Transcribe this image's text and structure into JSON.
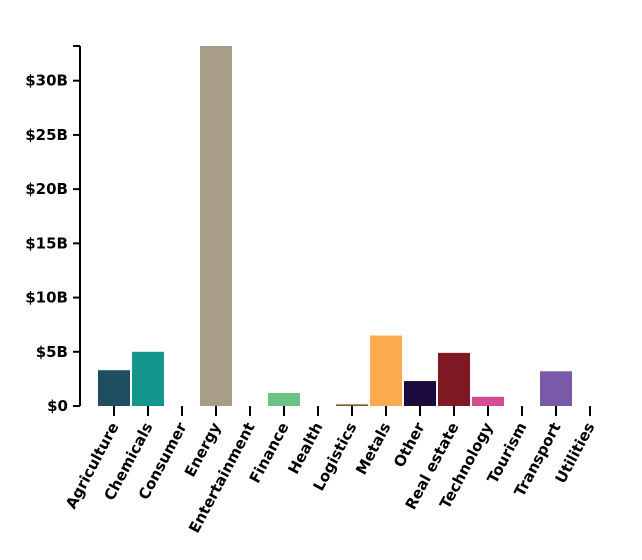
{
  "chart_data": {
    "type": "bar",
    "title": "",
    "xlabel": "",
    "ylabel": "",
    "ylim": [
      0,
      33.2
    ],
    "y_ticks": [
      0,
      5,
      10,
      15,
      20,
      25,
      30
    ],
    "y_tick_labels": [
      "$0",
      "$5B",
      "$10B",
      "$15B",
      "$20B",
      "$25B",
      "$30B"
    ],
    "grid": false,
    "legend": "none",
    "categories": [
      "Agriculture",
      "Chemicals",
      "Consumer",
      "Energy",
      "Entertainment",
      "Finance",
      "Health",
      "Logistics",
      "Metals",
      "Other",
      "Real estate",
      "Technology",
      "Tourism",
      "Transport",
      "Utilities"
    ],
    "values": [
      3.3,
      5.0,
      0,
      33.2,
      0,
      1.2,
      0,
      0.15,
      6.5,
      2.3,
      4.9,
      0.85,
      0,
      3.2,
      0
    ],
    "colors": [
      "#1f4e63",
      "#14968e",
      "#cccccc",
      "#a89e87",
      "#cccccc",
      "#6cc287",
      "#cccccc",
      "#7a5a2a",
      "#fcab4e",
      "#1c0a3d",
      "#7f1a25",
      "#d64c92",
      "#cccccc",
      "#7a5aa8",
      "#cccccc"
    ]
  }
}
